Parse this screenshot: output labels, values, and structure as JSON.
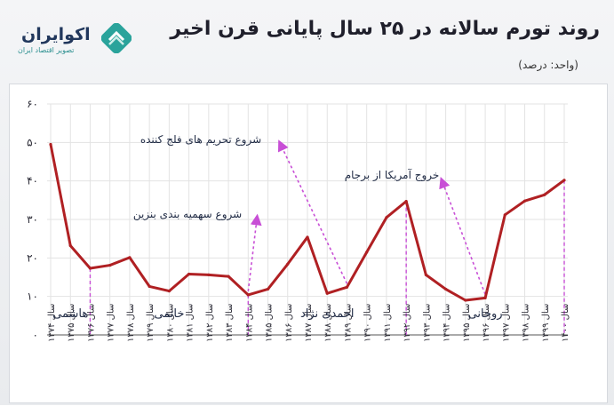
{
  "header": {
    "title": "روند تورم سالانه در ۲۵ سال پایانی قرن اخیر",
    "unit": "(واحد: درصد)"
  },
  "logo": {
    "name": "اکوایران",
    "tagline": "تصویر اقتصاد ایران",
    "icon": "ecoiran-logo-icon"
  },
  "colors": {
    "line": "#b02023",
    "grid": "#e3e3e3",
    "annotation": "#c84fd6",
    "text": "#2b2b36"
  },
  "chart_data": {
    "type": "line",
    "title": "روند تورم سالانه در ۲۵ سال پایانی قرن اخیر",
    "xlabel": "",
    "ylabel": "",
    "ylim": [
      0,
      60
    ],
    "yticks": [
      "۰",
      "۱۰",
      "۲۰",
      "۳۰",
      "۴۰",
      "۵۰",
      "۶۰"
    ],
    "grid": true,
    "categories": [
      "سال ۱۳۷۴",
      "سال ۱۳۷۵",
      "سال ۱۳۷۶",
      "سال ۱۳۷۷",
      "سال ۱۳۷۸",
      "سال ۱۳۷۹",
      "سال ۱۳۸۰",
      "سال ۱۳۸۱",
      "سال ۱۳۸۲",
      "سال ۱۳۸۳",
      "سال ۱۳۸۴",
      "سال ۱۳۸۵",
      "سال ۱۳۸۶",
      "سال ۱۳۸۷",
      "سال ۱۳۸۸",
      "سال ۱۳۸۹",
      "سال ۱۳۹۰",
      "سال ۱۳۹۱",
      "سال ۱۳۹۲",
      "سال ۱۳۹۳",
      "سال ۱۳۹۴",
      "سال ۱۳۹۵",
      "سال ۱۳۹۶",
      "سال ۱۳۹۷",
      "سال ۱۳۹۸",
      "سال ۱۳۹۹",
      "سال ۱۴۰۰"
    ],
    "values": [
      49.5,
      23.2,
      17.3,
      18.1,
      20.1,
      12.6,
      11.4,
      15.8,
      15.6,
      15.2,
      10.4,
      11.9,
      18.4,
      25.4,
      10.8,
      12.4,
      21.5,
      30.5,
      34.7,
      15.6,
      11.9,
      9.0,
      9.6,
      31.2,
      34.8,
      36.4,
      40.2
    ],
    "era_dividers": [
      "سال ۱۳۷۶",
      "سال ۱۳۸۴",
      "سال ۱۳۹۲",
      "سال ۱۴۰۰"
    ],
    "eras": [
      {
        "label": "هاشمی",
        "at": "سال ۱۳۷۵"
      },
      {
        "label": "خاتمی",
        "at": "سال ۱۳۸۰"
      },
      {
        "label": "احمدی نژاد",
        "at": "سال ۱۳۸۸"
      },
      {
        "label": "روحانی",
        "at": "سال ۱۳۹۶"
      }
    ],
    "annotations": [
      {
        "text": "شروع تحریم های فلج کننده",
        "point": "سال ۱۳۸۹"
      },
      {
        "text": "شروع سهمیه بندی بنزین",
        "point": "سال ۱۳۸۴"
      },
      {
        "text": "خروج آمریکا از برجام",
        "point": "سال ۱۳۹۶"
      }
    ]
  }
}
